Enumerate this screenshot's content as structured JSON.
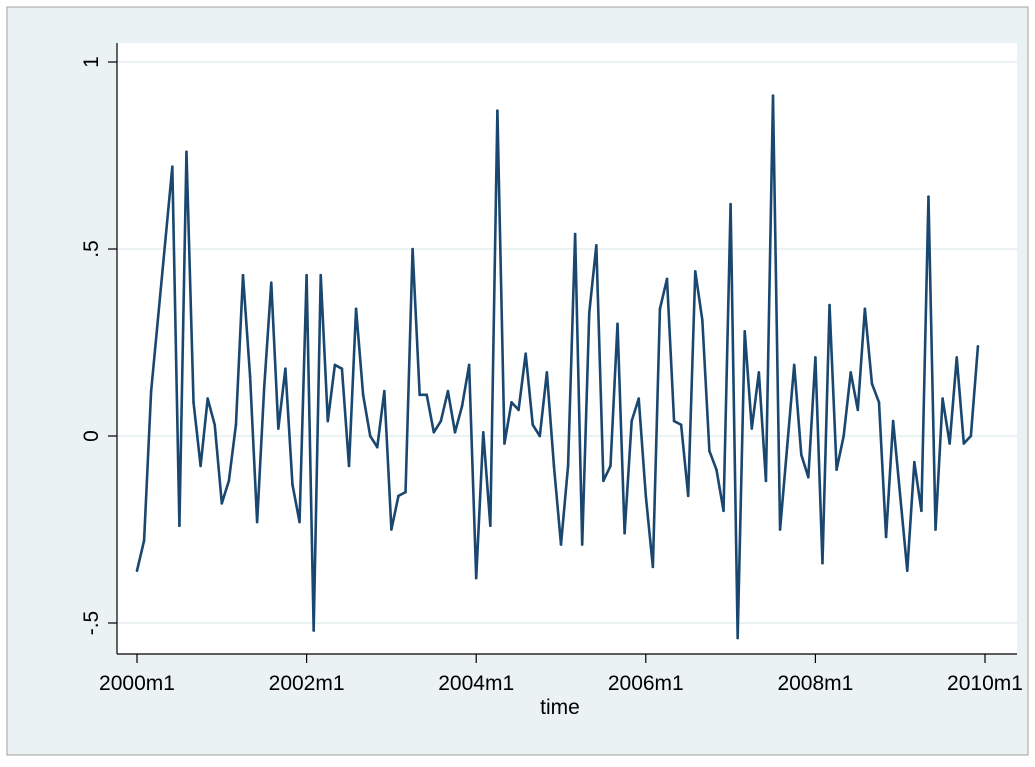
{
  "chart_data": {
    "type": "line",
    "xlabel": "time",
    "ylabel": "",
    "x_ticks": [
      "2000m1",
      "2002m1",
      "2004m1",
      "2006m1",
      "2008m1",
      "2010m1"
    ],
    "y_ticks": [
      "-.5",
      "0",
      ".5",
      "1"
    ],
    "x_range": [
      "2000m1",
      "2010m1"
    ],
    "ylim": [
      -0.5,
      1
    ],
    "grid": true,
    "colors": {
      "line": "#1a476f",
      "plot_background": "#ffffff",
      "outer_background": "#eaf2f3",
      "grid": "#eaf2f3"
    },
    "series": [
      {
        "x": [
          "2000m1",
          "2000m2",
          "2000m3",
          "2000m4",
          "2000m5",
          "2000m6",
          "2000m7",
          "2000m8",
          "2000m9",
          "2000m10",
          "2000m11",
          "2000m12",
          "2001m1",
          "2001m2",
          "2001m3",
          "2001m4",
          "2001m5",
          "2001m6",
          "2001m7",
          "2001m8",
          "2001m9",
          "2001m10",
          "2001m11",
          "2001m12",
          "2002m1",
          "2002m2",
          "2002m3",
          "2002m4",
          "2002m5",
          "2002m6",
          "2002m7",
          "2002m8",
          "2002m9",
          "2002m10",
          "2002m11",
          "2002m12",
          "2003m1",
          "2003m2",
          "2003m3",
          "2003m4",
          "2003m5",
          "2003m6",
          "2003m7",
          "2003m8",
          "2003m9",
          "2003m10",
          "2003m11",
          "2003m12",
          "2004m1",
          "2004m2",
          "2004m3",
          "2004m4",
          "2004m5",
          "2004m6",
          "2004m7",
          "2004m8",
          "2004m9",
          "2004m10",
          "2004m11",
          "2004m12",
          "2005m1",
          "2005m2",
          "2005m3",
          "2005m4",
          "2005m5",
          "2005m6",
          "2005m7",
          "2005m8",
          "2005m9",
          "2005m10",
          "2005m11",
          "2005m12",
          "2006m1",
          "2006m2",
          "2006m3",
          "2006m4",
          "2006m5",
          "2006m6",
          "2006m7",
          "2006m8",
          "2006m9",
          "2006m10",
          "2006m11",
          "2006m12",
          "2007m1",
          "2007m2",
          "2007m3",
          "2007m4",
          "2007m5",
          "2007m6",
          "2007m7",
          "2007m8",
          "2007m9",
          "2007m10",
          "2007m11",
          "2007m12",
          "2008m1",
          "2008m2",
          "2008m3",
          "2008m4",
          "2008m5",
          "2008m6",
          "2008m7",
          "2008m8",
          "2008m9",
          "2008m10",
          "2008m11",
          "2008m12",
          "2009m1",
          "2009m2",
          "2009m3",
          "2009m4",
          "2009m5",
          "2009m6",
          "2009m7",
          "2009m8",
          "2009m9",
          "2009m10",
          "2009m11",
          "2009m12"
        ],
        "values": [
          -0.36,
          -0.28,
          0.12,
          0.32,
          0.52,
          0.72,
          -0.24,
          0.76,
          0.09,
          -0.08,
          0.1,
          0.03,
          -0.18,
          -0.12,
          0.03,
          0.43,
          0.16,
          -0.23,
          0.13,
          0.41,
          0.02,
          0.18,
          -0.13,
          -0.23,
          0.43,
          -0.52,
          0.43,
          0.04,
          0.19,
          0.18,
          -0.08,
          0.34,
          0.11,
          0.0,
          -0.03,
          0.12,
          -0.25,
          -0.16,
          -0.15,
          0.5,
          0.11,
          0.11,
          0.01,
          0.04,
          0.12,
          0.01,
          0.08,
          0.19,
          -0.38,
          0.01,
          -0.24,
          0.87,
          -0.02,
          0.09,
          0.07,
          0.22,
          0.03,
          0.0,
          0.17,
          -0.08,
          -0.29,
          -0.08,
          0.54,
          -0.29,
          0.33,
          0.51,
          -0.12,
          -0.08,
          0.3,
          -0.26,
          0.04,
          0.1,
          -0.16,
          -0.35,
          0.34,
          0.42,
          0.04,
          0.03,
          -0.16,
          0.44,
          0.31,
          -0.04,
          -0.09,
          -0.2,
          0.62,
          -0.54,
          0.28,
          0.02,
          0.17,
          -0.12,
          0.91,
          -0.25,
          -0.03,
          0.19,
          -0.05,
          -0.11,
          0.21,
          -0.34,
          0.35,
          -0.09,
          0.0,
          0.17,
          0.07,
          0.34,
          0.14,
          0.09,
          -0.27,
          0.04,
          -0.16,
          -0.36,
          -0.07,
          -0.2,
          0.64,
          -0.25,
          0.1,
          -0.02,
          0.21,
          -0.02,
          0.0,
          0.24
        ]
      }
    ]
  }
}
